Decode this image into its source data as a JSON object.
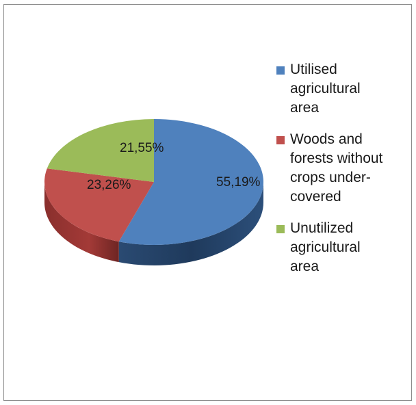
{
  "chart_data": {
    "type": "pie",
    "style": "3d",
    "slices": [
      {
        "label": "Utilised agricultural area",
        "display_label": "Utilised\nagricultural\narea",
        "value": 55.19,
        "value_label": "55,19%",
        "color": "#4f81bd"
      },
      {
        "label": "Woods and forests without crops under-covered",
        "display_label": "Woods and\nforests without\ncrops under-\ncovered",
        "value": 23.26,
        "value_label": "23,26%",
        "color": "#c0504d"
      },
      {
        "label": "Unutilized agricultural area",
        "display_label": "Unutilized\nagricultural\narea",
        "value": 21.55,
        "value_label": "21,55%",
        "color": "#9bbb59"
      }
    ],
    "legend_position": "right"
  }
}
